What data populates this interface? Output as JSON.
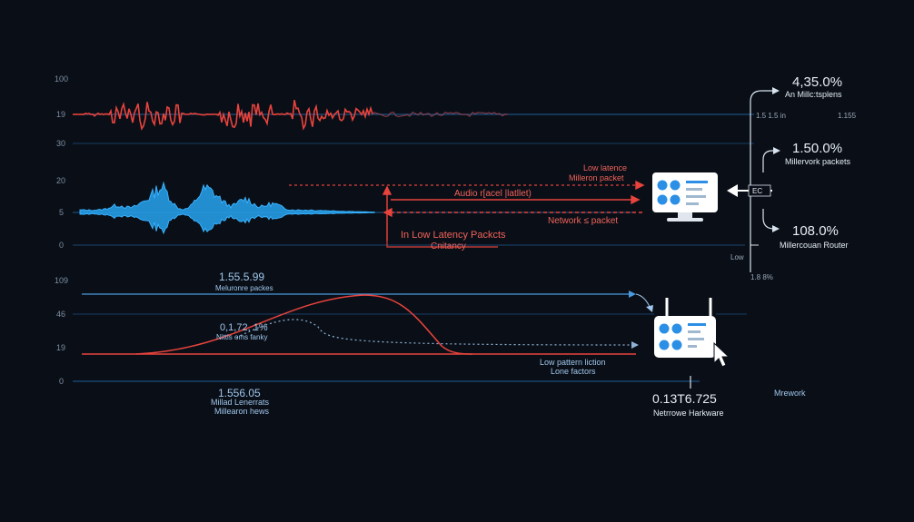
{
  "colors": {
    "background": "#0a0f17",
    "axis": "#1f5d9a",
    "audio_red": "#e8433d",
    "audio_blue": "#27a3f0",
    "label_blue": "#9fc6ec",
    "label_red": "#f0625a",
    "device_body": "#ffffff",
    "device_dot": "#2c8fe6"
  },
  "upper_ticks": [
    "100",
    "19",
    "30",
    "20",
    "5",
    "0"
  ],
  "lower_ticks": [
    "109",
    "46",
    "19",
    "0"
  ],
  "upper_labels": {
    "low_latence": "Low latence",
    "milleron_packet": "Milleron packet",
    "audio_packet": "Audio r[acel |latllet)",
    "network_packet": "Network ≤ packet",
    "low_latency_packets": "In Low Latency Packcts",
    "cnitancy": "Cnitancy"
  },
  "right_panel": {
    "stat1_value": "4,35.0%",
    "stat1_label": "An Millc:tsplens",
    "stat2_value": "1.50.0%",
    "stat2_label": "Millervork packets",
    "stat3_value": "108.0%",
    "stat3_label": "Millercouan Router",
    "mini_left": "1.5 1.5 in",
    "mini_right": "1.155",
    "mini_low": "Low",
    "mini_pct": "1.8 8%",
    "arrow_badge": "EC"
  },
  "lower_labels": {
    "top_value": "1.55.5.99",
    "top_label": "Meluronre packes",
    "mid_value": "0,1,72, 1%",
    "mid_label": "Nittls oms fanky",
    "bottom_value": "1.556.05",
    "bottom_label1": "Millad Lenerrats",
    "bottom_label2": "Millearon hews",
    "low_pattern": "Low pattern liction",
    "lone_factors": "Lone factors",
    "hw_value": "0.13T6.725",
    "hw_label": "Netrrowe Harkware",
    "network": "Mrework"
  },
  "icons": [
    "monitor-icon",
    "router-icon",
    "cursor-icon"
  ]
}
